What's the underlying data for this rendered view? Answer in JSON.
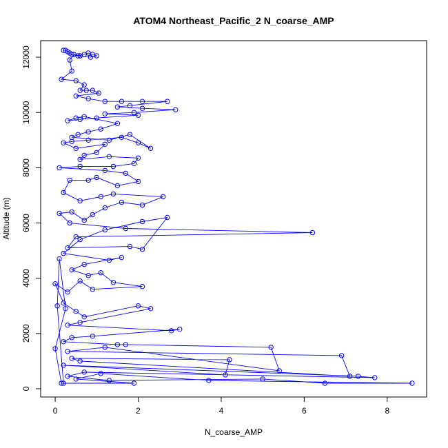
{
  "chart_data": {
    "type": "line",
    "title": "ATOM4 Northeast_Pacific_2 N_coarse_AMP",
    "xlabel": "N_coarse_AMP",
    "ylabel": "Altitude (m)",
    "xlim": [
      -0.35,
      8.95
    ],
    "ylim": [
      -300,
      12600
    ],
    "xticks": [
      0,
      2,
      4,
      6,
      8
    ],
    "yticks": [
      0,
      2000,
      4000,
      6000,
      8000,
      10000,
      12000
    ],
    "grid": false,
    "legend": "none",
    "marker": "open-circle",
    "series_color": "#0000ff",
    "series": [
      {
        "points": [
          [
            0.2,
            12250
          ],
          [
            0.25,
            12250
          ],
          [
            0.3,
            12200
          ],
          [
            0.35,
            12150
          ],
          [
            0.4,
            12100
          ],
          [
            0.55,
            12050
          ],
          [
            0.7,
            12100
          ],
          [
            0.8,
            12150
          ],
          [
            0.9,
            12100
          ],
          [
            1.0,
            12050
          ],
          [
            0.85,
            12000
          ],
          [
            0.6,
            12050
          ],
          [
            0.45,
            12100
          ],
          [
            0.35,
            11900
          ],
          [
            0.4,
            11500
          ],
          [
            0.15,
            11200
          ],
          [
            0.5,
            11150
          ],
          [
            0.7,
            11000
          ],
          [
            0.6,
            10800
          ],
          [
            0.75,
            10800
          ],
          [
            0.9,
            10800
          ],
          [
            1.05,
            10700
          ],
          [
            0.5,
            10600
          ],
          [
            0.8,
            10500
          ],
          [
            1.2,
            10400
          ],
          [
            1.6,
            10400
          ],
          [
            2.1,
            10400
          ],
          [
            2.7,
            10400
          ],
          [
            1.8,
            10250
          ],
          [
            1.5,
            10200
          ],
          [
            2.1,
            10150
          ],
          [
            2.9,
            10100
          ],
          [
            1.9,
            10000
          ],
          [
            1.2,
            9950
          ],
          [
            2.0,
            9900
          ],
          [
            1.0,
            9800
          ],
          [
            0.6,
            9750
          ],
          [
            0.3,
            9700
          ],
          [
            0.5,
            9800
          ],
          [
            0.7,
            9850
          ],
          [
            1.5,
            9600
          ],
          [
            1.1,
            9400
          ],
          [
            0.8,
            9300
          ],
          [
            0.55,
            9200
          ],
          [
            0.4,
            9100
          ],
          [
            1.3,
            9000
          ],
          [
            1.8,
            9200
          ],
          [
            2.3,
            8700
          ],
          [
            2.0,
            8900
          ],
          [
            1.6,
            9100
          ],
          [
            0.8,
            9000
          ],
          [
            0.4,
            8950
          ],
          [
            0.2,
            8900
          ],
          [
            0.5,
            8700
          ],
          [
            1.2,
            8850
          ],
          [
            1.0,
            8550
          ],
          [
            0.7,
            8450
          ],
          [
            0.6,
            8300
          ],
          [
            1.3,
            8400
          ],
          [
            2.0,
            8350
          ],
          [
            1.9,
            8150
          ],
          [
            1.4,
            8050
          ],
          [
            0.6,
            8050
          ],
          [
            0.1,
            8000
          ],
          [
            1.2,
            7900
          ],
          [
            1.7,
            7800
          ],
          [
            2.0,
            7500
          ],
          [
            1.5,
            7350
          ],
          [
            1.0,
            7650
          ],
          [
            0.8,
            7550
          ],
          [
            0.35,
            7550
          ],
          [
            0.2,
            7100
          ],
          [
            0.6,
            6800
          ],
          [
            1.1,
            6950
          ],
          [
            1.4,
            7050
          ],
          [
            2.6,
            6950
          ],
          [
            2.1,
            6650
          ],
          [
            1.6,
            6750
          ],
          [
            1.2,
            6550
          ],
          [
            0.9,
            6300
          ],
          [
            0.7,
            6100
          ],
          [
            0.4,
            6400
          ],
          [
            0.1,
            6350
          ],
          [
            0.35,
            6000
          ],
          [
            1.7,
            5800
          ],
          [
            6.2,
            5650
          ],
          [
            0.5,
            5500
          ],
          [
            0.3,
            5100
          ],
          [
            1.8,
            5150
          ],
          [
            2.1,
            5050
          ],
          [
            2.7,
            6200
          ],
          [
            2.1,
            6050
          ],
          [
            1.2,
            5750
          ],
          [
            0.6,
            5400
          ],
          [
            0.2,
            4900
          ],
          [
            1.3,
            4650
          ],
          [
            1.6,
            4750
          ],
          [
            0.7,
            4500
          ],
          [
            0.4,
            4300
          ],
          [
            0.8,
            4100
          ],
          [
            1.1,
            4200
          ],
          [
            1.4,
            3850
          ],
          [
            2.1,
            3700
          ],
          [
            0.9,
            3600
          ],
          [
            0.6,
            3900
          ],
          [
            0.3,
            3500
          ],
          [
            0.0,
            3800
          ],
          [
            0.2,
            3100
          ],
          [
            0.5,
            2800
          ],
          [
            0.7,
            2600
          ],
          [
            2.0,
            3000
          ],
          [
            2.3,
            2900
          ],
          [
            0.6,
            2400
          ],
          [
            0.3,
            2300
          ],
          [
            2.8,
            2100
          ],
          [
            3.0,
            2150
          ],
          [
            0.9,
            1900
          ],
          [
            0.4,
            1850
          ],
          [
            0.2,
            1700
          ],
          [
            1.5,
            1600
          ],
          [
            1.7,
            1600
          ],
          [
            5.2,
            1500
          ],
          [
            5.4,
            650
          ],
          [
            1.2,
            1500
          ],
          [
            0.3,
            1350
          ],
          [
            6.9,
            1200
          ],
          [
            7.1,
            450
          ],
          [
            0.6,
            1000
          ],
          [
            0.4,
            1100
          ],
          [
            4.2,
            1050
          ],
          [
            4.1,
            500
          ],
          [
            0.2,
            850
          ],
          [
            7.3,
            450
          ],
          [
            7.7,
            400
          ],
          [
            0.7,
            600
          ],
          [
            0.3,
            450
          ],
          [
            1.3,
            300
          ],
          [
            5.0,
            350
          ],
          [
            6.5,
            200
          ],
          [
            8.6,
            200
          ],
          [
            3.7,
            300
          ],
          [
            1.1,
            550
          ],
          [
            0.5,
            350
          ],
          [
            1.9,
            200
          ],
          [
            0.15,
            200
          ],
          [
            0.0,
            1450
          ],
          [
            0.25,
            2900
          ],
          [
            0.1,
            4700
          ],
          [
            0.05,
            3000
          ],
          [
            0.2,
            200
          ]
        ]
      }
    ]
  }
}
